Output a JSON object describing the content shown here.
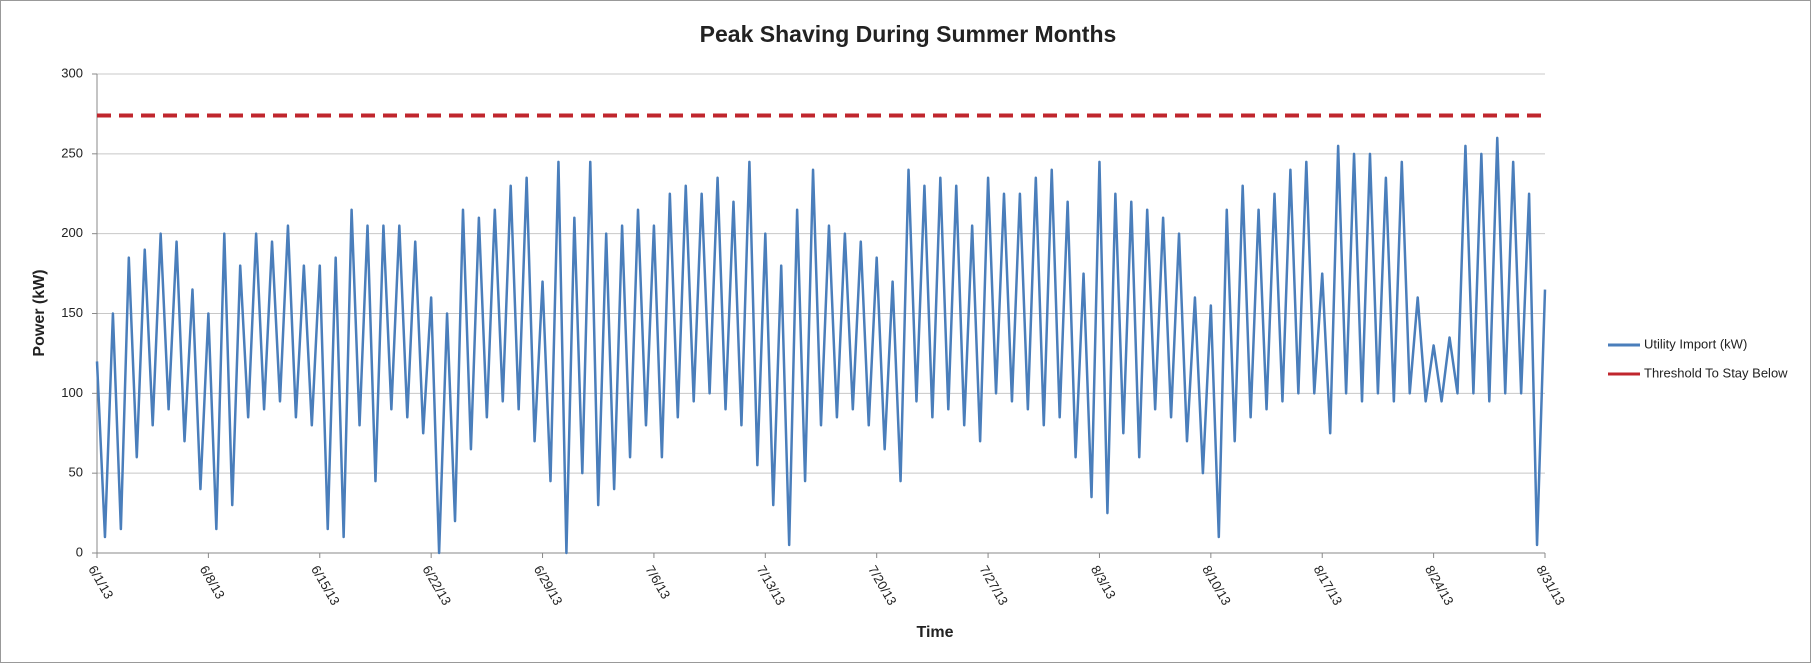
{
  "chart_data": {
    "type": "line",
    "title": "Peak Shaving During Summer Months",
    "x_label": "Time",
    "y_label": "Power (kW)",
    "xlim": [
      0,
      91
    ],
    "xticks": [
      {
        "value": 0,
        "label": "6/1/13"
      },
      {
        "value": 7,
        "label": "6/8/13"
      },
      {
        "value": 14,
        "label": "6/15/13"
      },
      {
        "value": 21,
        "label": "6/22/13"
      },
      {
        "value": 28,
        "label": "6/29/13"
      },
      {
        "value": 35,
        "label": "7/6/13"
      },
      {
        "value": 42,
        "label": "7/13/13"
      },
      {
        "value": 49,
        "label": "7/20/13"
      },
      {
        "value": 56,
        "label": "7/27/13"
      },
      {
        "value": 63,
        "label": "8/3/13"
      },
      {
        "value": 70,
        "label": "8/10/13"
      },
      {
        "value": 77,
        "label": "8/17/13"
      },
      {
        "value": 84,
        "label": "8/24/13"
      },
      {
        "value": 91,
        "label": "8/31/13"
      }
    ],
    "ylim": [
      0,
      300
    ],
    "yticks": [
      0,
      50,
      100,
      150,
      200,
      250,
      300
    ],
    "grid": true,
    "legend": "right",
    "series": [
      {
        "name": "Utility Import (kW)",
        "color": "#4a7ebb",
        "dash": false,
        "x": [
          0,
          0.5,
          1,
          1.5,
          2,
          2.5,
          3,
          3.5,
          4,
          4.5,
          5,
          5.5,
          6,
          6.5,
          7,
          7.5,
          8,
          8.5,
          9,
          9.5,
          10,
          10.5,
          11,
          11.5,
          12,
          12.5,
          13,
          13.5,
          14,
          14.5,
          15,
          15.5,
          16,
          16.5,
          17,
          17.5,
          18,
          18.5,
          19,
          19.5,
          20,
          20.5,
          21,
          21.5,
          22,
          22.5,
          23,
          23.5,
          24,
          24.5,
          25,
          25.5,
          26,
          26.5,
          27,
          27.5,
          28,
          28.5,
          29,
          29.5,
          30,
          30.5,
          31,
          31.5,
          32,
          32.5,
          33,
          33.5,
          34,
          34.5,
          35,
          35.5,
          36,
          36.5,
          37,
          37.5,
          38,
          38.5,
          39,
          39.5,
          40,
          40.5,
          41,
          41.5,
          42,
          42.5,
          43,
          43.5,
          44,
          44.5,
          45,
          45.5,
          46,
          46.5,
          47,
          47.5,
          48,
          48.5,
          49,
          49.5,
          50,
          50.5,
          51,
          51.5,
          52,
          52.5,
          53,
          53.5,
          54,
          54.5,
          55,
          55.5,
          56,
          56.5,
          57,
          57.5,
          58,
          58.5,
          59,
          59.5,
          60,
          60.5,
          61,
          61.5,
          62,
          62.5,
          63,
          63.5,
          64,
          64.5,
          65,
          65.5,
          66,
          66.5,
          67,
          67.5,
          68,
          68.5,
          69,
          69.5,
          70,
          70.5,
          71,
          71.5,
          72,
          72.5,
          73,
          73.5,
          74,
          74.5,
          75,
          75.5,
          76,
          76.5,
          77,
          77.5,
          78,
          78.5,
          79,
          79.5,
          80,
          80.5,
          81,
          81.5,
          82,
          82.5,
          83,
          83.5,
          84,
          84.5,
          85,
          85.5,
          86,
          86.5,
          87,
          87.5,
          88,
          88.5,
          89,
          89.5,
          90,
          90.5,
          91
        ],
        "values": [
          120,
          10,
          150,
          15,
          185,
          60,
          190,
          80,
          200,
          90,
          195,
          70,
          165,
          40,
          150,
          15,
          200,
          30,
          180,
          85,
          200,
          90,
          195,
          95,
          205,
          85,
          180,
          80,
          180,
          15,
          185,
          10,
          215,
          80,
          205,
          45,
          205,
          90,
          205,
          85,
          195,
          75,
          160,
          0,
          150,
          20,
          215,
          65,
          210,
          85,
          215,
          95,
          230,
          90,
          235,
          70,
          170,
          45,
          245,
          0,
          210,
          50,
          245,
          30,
          200,
          40,
          205,
          60,
          215,
          80,
          205,
          60,
          225,
          85,
          230,
          95,
          225,
          100,
          235,
          90,
          220,
          80,
          245,
          55,
          200,
          30,
          180,
          5,
          215,
          45,
          240,
          80,
          205,
          85,
          200,
          90,
          195,
          80,
          185,
          65,
          170,
          45,
          240,
          95,
          230,
          85,
          235,
          90,
          230,
          80,
          205,
          70,
          235,
          100,
          225,
          95,
          225,
          90,
          235,
          80,
          240,
          85,
          220,
          60,
          175,
          35,
          245,
          25,
          225,
          75,
          220,
          60,
          215,
          90,
          210,
          85,
          200,
          70,
          160,
          50,
          155,
          10,
          215,
          70,
          230,
          85,
          215,
          90,
          225,
          95,
          240,
          100,
          245,
          100,
          175,
          75,
          255,
          100,
          250,
          95,
          250,
          100,
          235,
          95,
          245,
          100,
          160,
          95,
          130,
          95,
          135,
          100,
          255,
          100,
          250,
          95,
          260,
          100,
          245,
          100,
          225,
          5,
          165
        ]
      },
      {
        "name": "Threshold To Stay Below",
        "color": "#c0262d",
        "dash": true,
        "x": [
          0,
          91
        ],
        "values": [
          274,
          274
        ]
      }
    ]
  }
}
